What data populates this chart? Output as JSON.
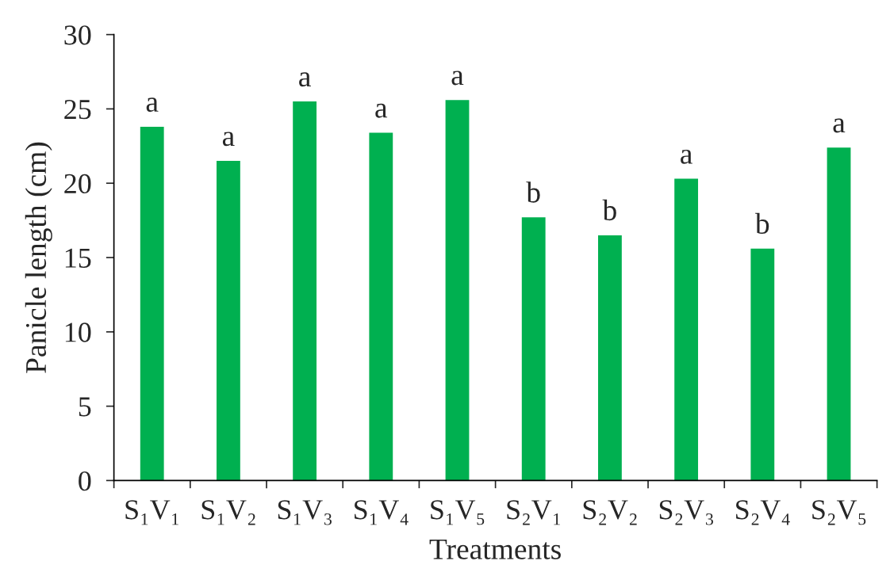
{
  "chart_data": {
    "type": "bar",
    "xlabel": "Treatments",
    "ylabel": "Panicle length (cm)",
    "categories": [
      "S₁V₁",
      "S₁V₂",
      "S₁V₃",
      "S₁V₄",
      "S₁V₅",
      "S₂V₁",
      "S₂V₂",
      "S₂V₃",
      "S₂V₄",
      "S₂V₅"
    ],
    "values": [
      23.8,
      21.5,
      25.5,
      23.4,
      25.6,
      17.7,
      16.5,
      20.3,
      15.6,
      22.4
    ],
    "color": "#00b050",
    "ylim": [
      0,
      30
    ],
    "yticks": [
      0,
      5,
      10,
      15,
      20,
      25,
      30
    ],
    "annotations": [
      {
        "text": "a",
        "x": "S₁V₁",
        "y": 23.8
      },
      {
        "text": "a",
        "x": "S₁V₂",
        "y": 21.5
      },
      {
        "text": "a",
        "x": "S₁V₃",
        "y": 25.5
      },
      {
        "text": "a",
        "x": "S₁V₄",
        "y": 23.4
      },
      {
        "text": "a",
        "x": "S₁V₅",
        "y": 25.6
      },
      {
        "text": "b",
        "x": "S₂V₁",
        "y": 17.7
      },
      {
        "text": "b",
        "x": "S₂V₂",
        "y": 16.5
      },
      {
        "text": "a",
        "x": "S₂V₃",
        "y": 20.3
      },
      {
        "text": "b",
        "x": "S₂V₄",
        "y": 15.6
      },
      {
        "text": "a",
        "x": "S₂V₅",
        "y": 22.4
      }
    ]
  }
}
